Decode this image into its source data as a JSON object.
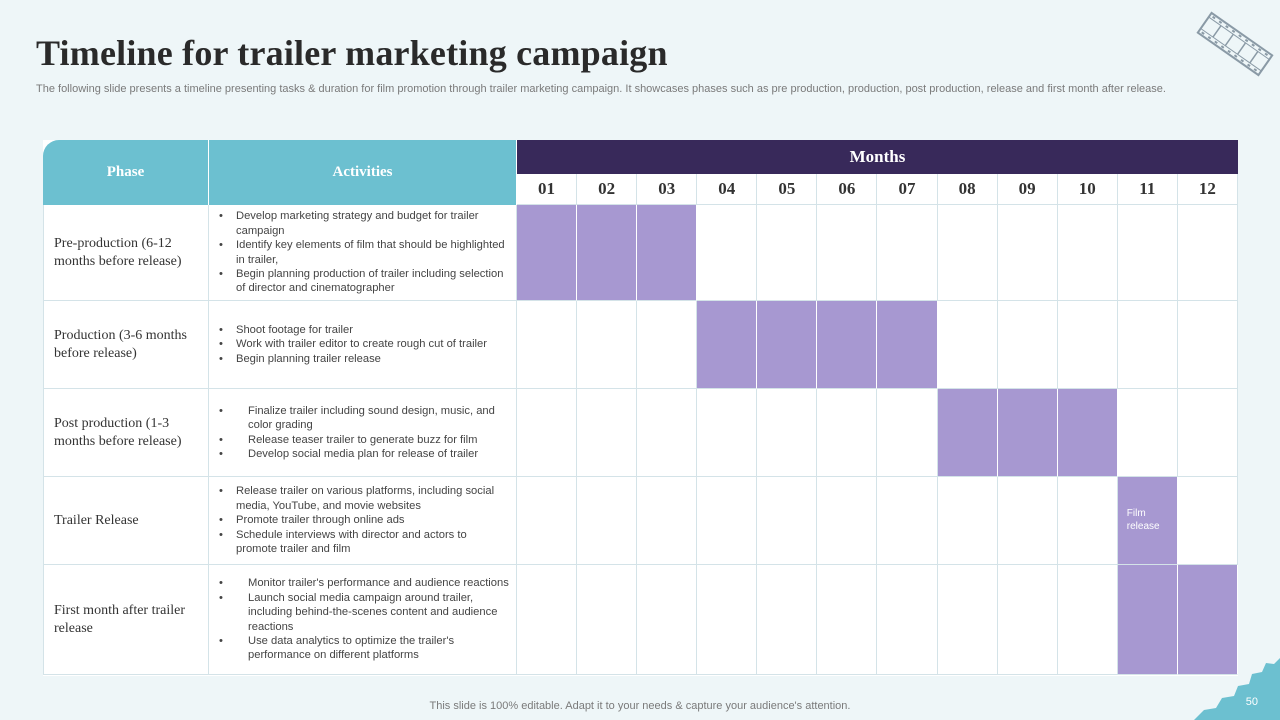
{
  "title": "Timeline for trailer marketing campaign",
  "subtitle": "The following slide presents a timeline presenting tasks & duration for film promotion through trailer marketing campaign. It showcases phases such as pre production, production, post production, release and first month after release.",
  "table": {
    "phase_header": "Phase",
    "activities_header": "Activities",
    "months_header": "Months",
    "months": [
      "01",
      "02",
      "03",
      "04",
      "05",
      "06",
      "07",
      "08",
      "09",
      "10",
      "11",
      "12"
    ],
    "rows": [
      {
        "phase": "Pre-production (6-12 months before release)",
        "activities": [
          "Develop marketing strategy and budget for trailer campaign",
          "Identify key elements of film that should be highlighted in trailer,",
          "Begin planning production of trailer including selection of director and cinematographer"
        ],
        "months_active": [
          1,
          2,
          3
        ]
      },
      {
        "phase": "Production (3-6 months before release)",
        "activities": [
          "Shoot footage for trailer",
          "Work with trailer editor to create rough cut of trailer",
          "Begin planning trailer release"
        ],
        "months_active": [
          4,
          5,
          6,
          7
        ]
      },
      {
        "phase": "Post production (1-3 months before release)",
        "activities": [
          "Finalize trailer including sound design, music, and color grading",
          "Release teaser trailer to generate buzz for film",
          "Develop social media plan for release of trailer"
        ],
        "months_active": [
          8,
          9,
          10
        ]
      },
      {
        "phase": "Trailer Release",
        "activities": [
          "Release trailer on various platforms, including social media, YouTube, and movie websites",
          "Promote trailer through online ads",
          "Schedule interviews with director and actors to promote  trailer and film"
        ],
        "months_active": [
          11
        ],
        "bar_label": "Film release"
      },
      {
        "phase": "First month after trailer release",
        "activities": [
          "Monitor trailer's performance and audience reactions",
          "Launch social media campaign around trailer, including behind-the-scenes content and audience reactions",
          "Use data analytics to optimize the trailer's performance on different platforms"
        ],
        "months_active": [
          11,
          12
        ]
      }
    ]
  },
  "footer": "This slide is 100% editable. Adapt it to your needs & capture your audience's attention.",
  "page_number": "50",
  "icons": [
    "film-strip-icon"
  ],
  "colors": {
    "header_teal": "#6cc0d0",
    "months_header": "#38295a",
    "bar_fill": "#a798d1",
    "background": "#eef6f8"
  }
}
